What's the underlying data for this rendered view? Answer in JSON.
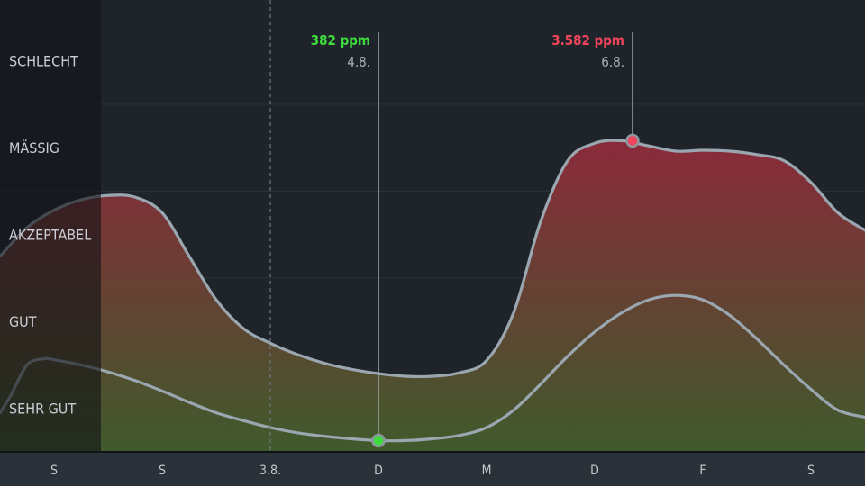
{
  "chart_data": {
    "type": "area",
    "colors": {
      "background": "#1f242b",
      "shade": "#111316",
      "axis_bar": "#2b3138",
      "line": "#9aa6b0",
      "good_green": "#3ddc3d",
      "bad_red": "#f0455a",
      "fill_top": "#8a2a3a",
      "fill_bottom": "#3f5a2c"
    },
    "x_ticks": [
      "S",
      "S",
      "3.8.",
      "D",
      "M",
      "D",
      "F",
      "S"
    ],
    "categories": [
      "SEHR GUT",
      "GUT",
      "AKZEPTABEL",
      "MÄSSIG",
      "SCHLECHT"
    ],
    "x_range": [
      -0.5,
      7.5
    ],
    "y_range": [
      0,
      5.2
    ],
    "marker_line_at": 2,
    "series": [
      {
        "x": [
          -0.5,
          -0.25,
          0,
          0.25,
          0.5,
          0.75,
          1,
          1.25,
          1.5,
          1.75,
          2,
          2.25,
          2.5,
          2.75,
          3,
          3.25,
          3.5,
          3.75,
          4,
          4.25,
          4.5,
          4.75,
          5,
          5.25,
          5.5,
          5.75,
          6,
          6.25,
          6.5,
          6.75,
          7,
          7.25,
          7.5
        ],
        "y": [
          2.25,
          2.58,
          2.78,
          2.9,
          2.95,
          2.93,
          2.75,
          2.25,
          1.75,
          1.42,
          1.25,
          1.12,
          1.02,
          0.95,
          0.9,
          0.87,
          0.87,
          0.91,
          1.05,
          1.6,
          2.65,
          3.35,
          3.55,
          3.58,
          3.52,
          3.46,
          3.47,
          3.46,
          3.42,
          3.35,
          3.1,
          2.75,
          2.55
        ]
      },
      {
        "x": [
          -0.5,
          -0.4,
          -0.25,
          -0.1,
          0,
          0.25,
          0.5,
          0.75,
          1,
          1.25,
          1.5,
          1.75,
          2,
          2.25,
          2.5,
          2.75,
          3,
          3.25,
          3.5,
          3.75,
          4,
          4.25,
          4.5,
          4.75,
          5,
          5.25,
          5.5,
          5.75,
          6,
          6.25,
          6.5,
          6.75,
          7,
          7.25,
          7.5
        ],
        "y": [
          0.45,
          0.65,
          1.0,
          1.07,
          1.06,
          1.0,
          0.92,
          0.82,
          0.7,
          0.57,
          0.45,
          0.36,
          0.28,
          0.22,
          0.18,
          0.15,
          0.13,
          0.13,
          0.15,
          0.19,
          0.28,
          0.48,
          0.78,
          1.1,
          1.38,
          1.6,
          1.75,
          1.8,
          1.75,
          1.57,
          1.3,
          1.0,
          0.72,
          0.48,
          0.4
        ]
      }
    ],
    "annotations": [
      {
        "value": "382 ppm",
        "date": "4.8.",
        "x": 3,
        "y": 0.13,
        "kind": "low"
      },
      {
        "value": "3.582 ppm",
        "date": "6.8.",
        "x": 5.35,
        "y": 3.58,
        "kind": "high"
      }
    ],
    "grid": true,
    "legend": "none"
  }
}
